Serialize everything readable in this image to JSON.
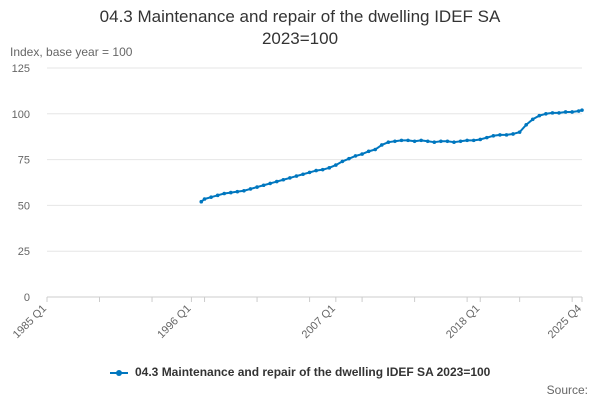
{
  "chart_data": {
    "type": "line",
    "title_line1": "04.3 Maintenance and repair of the dwelling IDEF SA",
    "title_line2": "2023=100",
    "ylabel": "Index, base year = 100",
    "xlabel": "",
    "ylim": [
      0,
      125
    ],
    "yticks": [
      "0",
      "25",
      "50",
      "75",
      "100",
      "125"
    ],
    "x_range": [
      "1985 Q1",
      "2025 Q4"
    ],
    "xticks": [
      "1985 Q1",
      "1996 Q1",
      "2007 Q1",
      "2018 Q1",
      "2025 Q4"
    ],
    "grid": true,
    "legend_position": "bottom",
    "source_label": "Source:",
    "series": [
      {
        "name": "04.3 Maintenance and repair of the dwelling IDEF SA 2023=100",
        "color": "#0077bf",
        "points": [
          [
            "1996 Q4",
            52
          ],
          [
            "1997 Q1",
            53.5
          ],
          [
            "1997 Q3",
            54.5
          ],
          [
            "1998 Q1",
            55.5
          ],
          [
            "1998 Q3",
            56.5
          ],
          [
            "1999 Q1",
            57
          ],
          [
            "1999 Q3",
            57.5
          ],
          [
            "2000 Q1",
            58
          ],
          [
            "2000 Q3",
            59
          ],
          [
            "2001 Q1",
            60
          ],
          [
            "2001 Q3",
            61
          ],
          [
            "2002 Q1",
            62
          ],
          [
            "2002 Q3",
            63
          ],
          [
            "2003 Q1",
            64
          ],
          [
            "2003 Q3",
            65
          ],
          [
            "2004 Q1",
            66
          ],
          [
            "2004 Q3",
            67
          ],
          [
            "2005 Q1",
            68
          ],
          [
            "2005 Q3",
            69
          ],
          [
            "2006 Q1",
            69.5
          ],
          [
            "2006 Q3",
            70.5
          ],
          [
            "2007 Q1",
            72
          ],
          [
            "2007 Q3",
            74
          ],
          [
            "2008 Q1",
            75.5
          ],
          [
            "2008 Q3",
            77
          ],
          [
            "2009 Q1",
            78
          ],
          [
            "2009 Q3",
            79.5
          ],
          [
            "2010 Q1",
            80.5
          ],
          [
            "2010 Q3",
            83
          ],
          [
            "2011 Q1",
            84.5
          ],
          [
            "2011 Q3",
            85
          ],
          [
            "2012 Q1",
            85.5
          ],
          [
            "2012 Q3",
            85.5
          ],
          [
            "2013 Q1",
            85
          ],
          [
            "2013 Q3",
            85.5
          ],
          [
            "2014 Q1",
            85
          ],
          [
            "2014 Q3",
            84.5
          ],
          [
            "2015 Q1",
            85
          ],
          [
            "2015 Q3",
            85
          ],
          [
            "2016 Q1",
            84.5
          ],
          [
            "2016 Q3",
            85
          ],
          [
            "2017 Q1",
            85.5
          ],
          [
            "2017 Q3",
            85.5
          ],
          [
            "2018 Q1",
            86
          ],
          [
            "2018 Q3",
            87
          ],
          [
            "2019 Q1",
            88
          ],
          [
            "2019 Q3",
            88.5
          ],
          [
            "2020 Q1",
            88.5
          ],
          [
            "2020 Q3",
            89
          ],
          [
            "2021 Q1",
            90
          ],
          [
            "2021 Q3",
            94
          ],
          [
            "2022 Q1",
            97
          ],
          [
            "2022 Q3",
            99
          ],
          [
            "2023 Q1",
            100
          ],
          [
            "2023 Q3",
            100.5
          ],
          [
            "2024 Q1",
            100.5
          ],
          [
            "2024 Q3",
            101
          ],
          [
            "2025 Q1",
            101
          ],
          [
            "2025 Q3",
            101.5
          ],
          [
            "2025 Q4",
            102
          ]
        ]
      }
    ]
  }
}
